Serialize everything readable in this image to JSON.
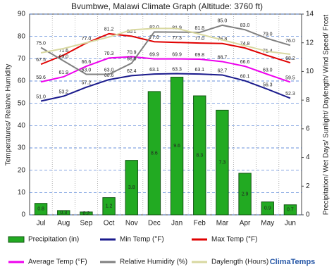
{
  "chart_data": {
    "type": "combo",
    "title": "Bvumbwe, Malawi Climate Graph (Altitude: 3760 ft)",
    "y_label": "Temperatures/ Relative Humidity",
    "y2_label": "Precipitation/ Wet Days/ Sunlight/ Daylength/ Wind Speed/ Frost",
    "categories": [
      "Jul",
      "Aug",
      "Sep",
      "Oct",
      "Nov",
      "Dec",
      "Jan",
      "Feb",
      "Mar",
      "Apr",
      "May",
      "Jun"
    ],
    "ylim": [
      0,
      90
    ],
    "yticks": [
      0,
      10,
      20,
      30,
      40,
      50,
      60,
      70,
      80,
      90
    ],
    "y2lim": [
      0,
      14
    ],
    "y2ticks": [
      0,
      2,
      4,
      6,
      8,
      10,
      12,
      14
    ],
    "grid": true,
    "series": [
      {
        "name": "Precipitation (in)",
        "type": "bar",
        "axis": "y2",
        "color": "#22aa22",
        "values": [
          0.8,
          0.3,
          0.2,
          1.2,
          3.8,
          8.6,
          9.6,
          8.3,
          7.3,
          2.9,
          0.9,
          0.7
        ]
      },
      {
        "name": "Min Temp (°F)",
        "type": "line",
        "color": "#1a1a8c",
        "values": [
          51.0,
          53.2,
          57.2,
          60.6,
          62.4,
          63.1,
          63.3,
          63.1,
          62.7,
          60.1,
          56.3,
          52.3
        ],
        "value_labels": [
          "51.0",
          "53.2",
          "57.2",
          "60.6",
          "62.4",
          "63.1",
          "63.3",
          "63.1",
          "62.7",
          "60.1",
          "56.3",
          "52.3"
        ]
      },
      {
        "name": "Max Temp (°F)",
        "type": "line",
        "color": "#e00000",
        "values": [
          67.5,
          71.6,
          77.0,
          81.2,
          80.1,
          77.6,
          77.3,
          77.0,
          76.8,
          74.8,
          71.4,
          68.2
        ],
        "value_labels": [
          "67.5",
          "71.6",
          "77.0",
          "81.2",
          "80.1",
          "77.6",
          "77.3",
          "77.0",
          "76.8",
          "74.8",
          "71.4",
          "68.2"
        ]
      },
      {
        "name": "Average Temp (°F)",
        "type": "line",
        "color": "#ee00ee",
        "values": [
          59.6,
          61.9,
          66.6,
          70.3,
          70.9,
          69.9,
          69.9,
          69.8,
          68.7,
          66.6,
          63.0,
          59.5
        ],
        "value_labels": [
          "59.6",
          "61.9",
          "66.6",
          "70.3",
          "70.9",
          "69.9",
          "69.9",
          "69.8",
          "68.7",
          "66.6",
          "63.0",
          "59.5"
        ]
      },
      {
        "name": "Relative Humidity (%)",
        "type": "line",
        "color": "#808080",
        "values": [
          75.0,
          69.0,
          63.0,
          63.0,
          68.0,
          82.0,
          81.9,
          81.8,
          85.0,
          83.0,
          79.0,
          76.0
        ],
        "value_labels": [
          "75.0",
          "69.0",
          "63.0",
          "63.0",
          "68.0",
          "82.0",
          "81.9",
          "81.8",
          "85.0",
          "83.0",
          "79.0",
          "76.0"
        ]
      },
      {
        "name": "Daylength (Hours)",
        "type": "line",
        "axis": "y2",
        "color": "#d8d8a0",
        "values": [
          11.3,
          11.6,
          12.0,
          12.4,
          12.9,
          13.0,
          13.0,
          12.6,
          12.2,
          11.8,
          11.4,
          11.2
        ]
      }
    ],
    "brand": "ClimaTemps"
  }
}
